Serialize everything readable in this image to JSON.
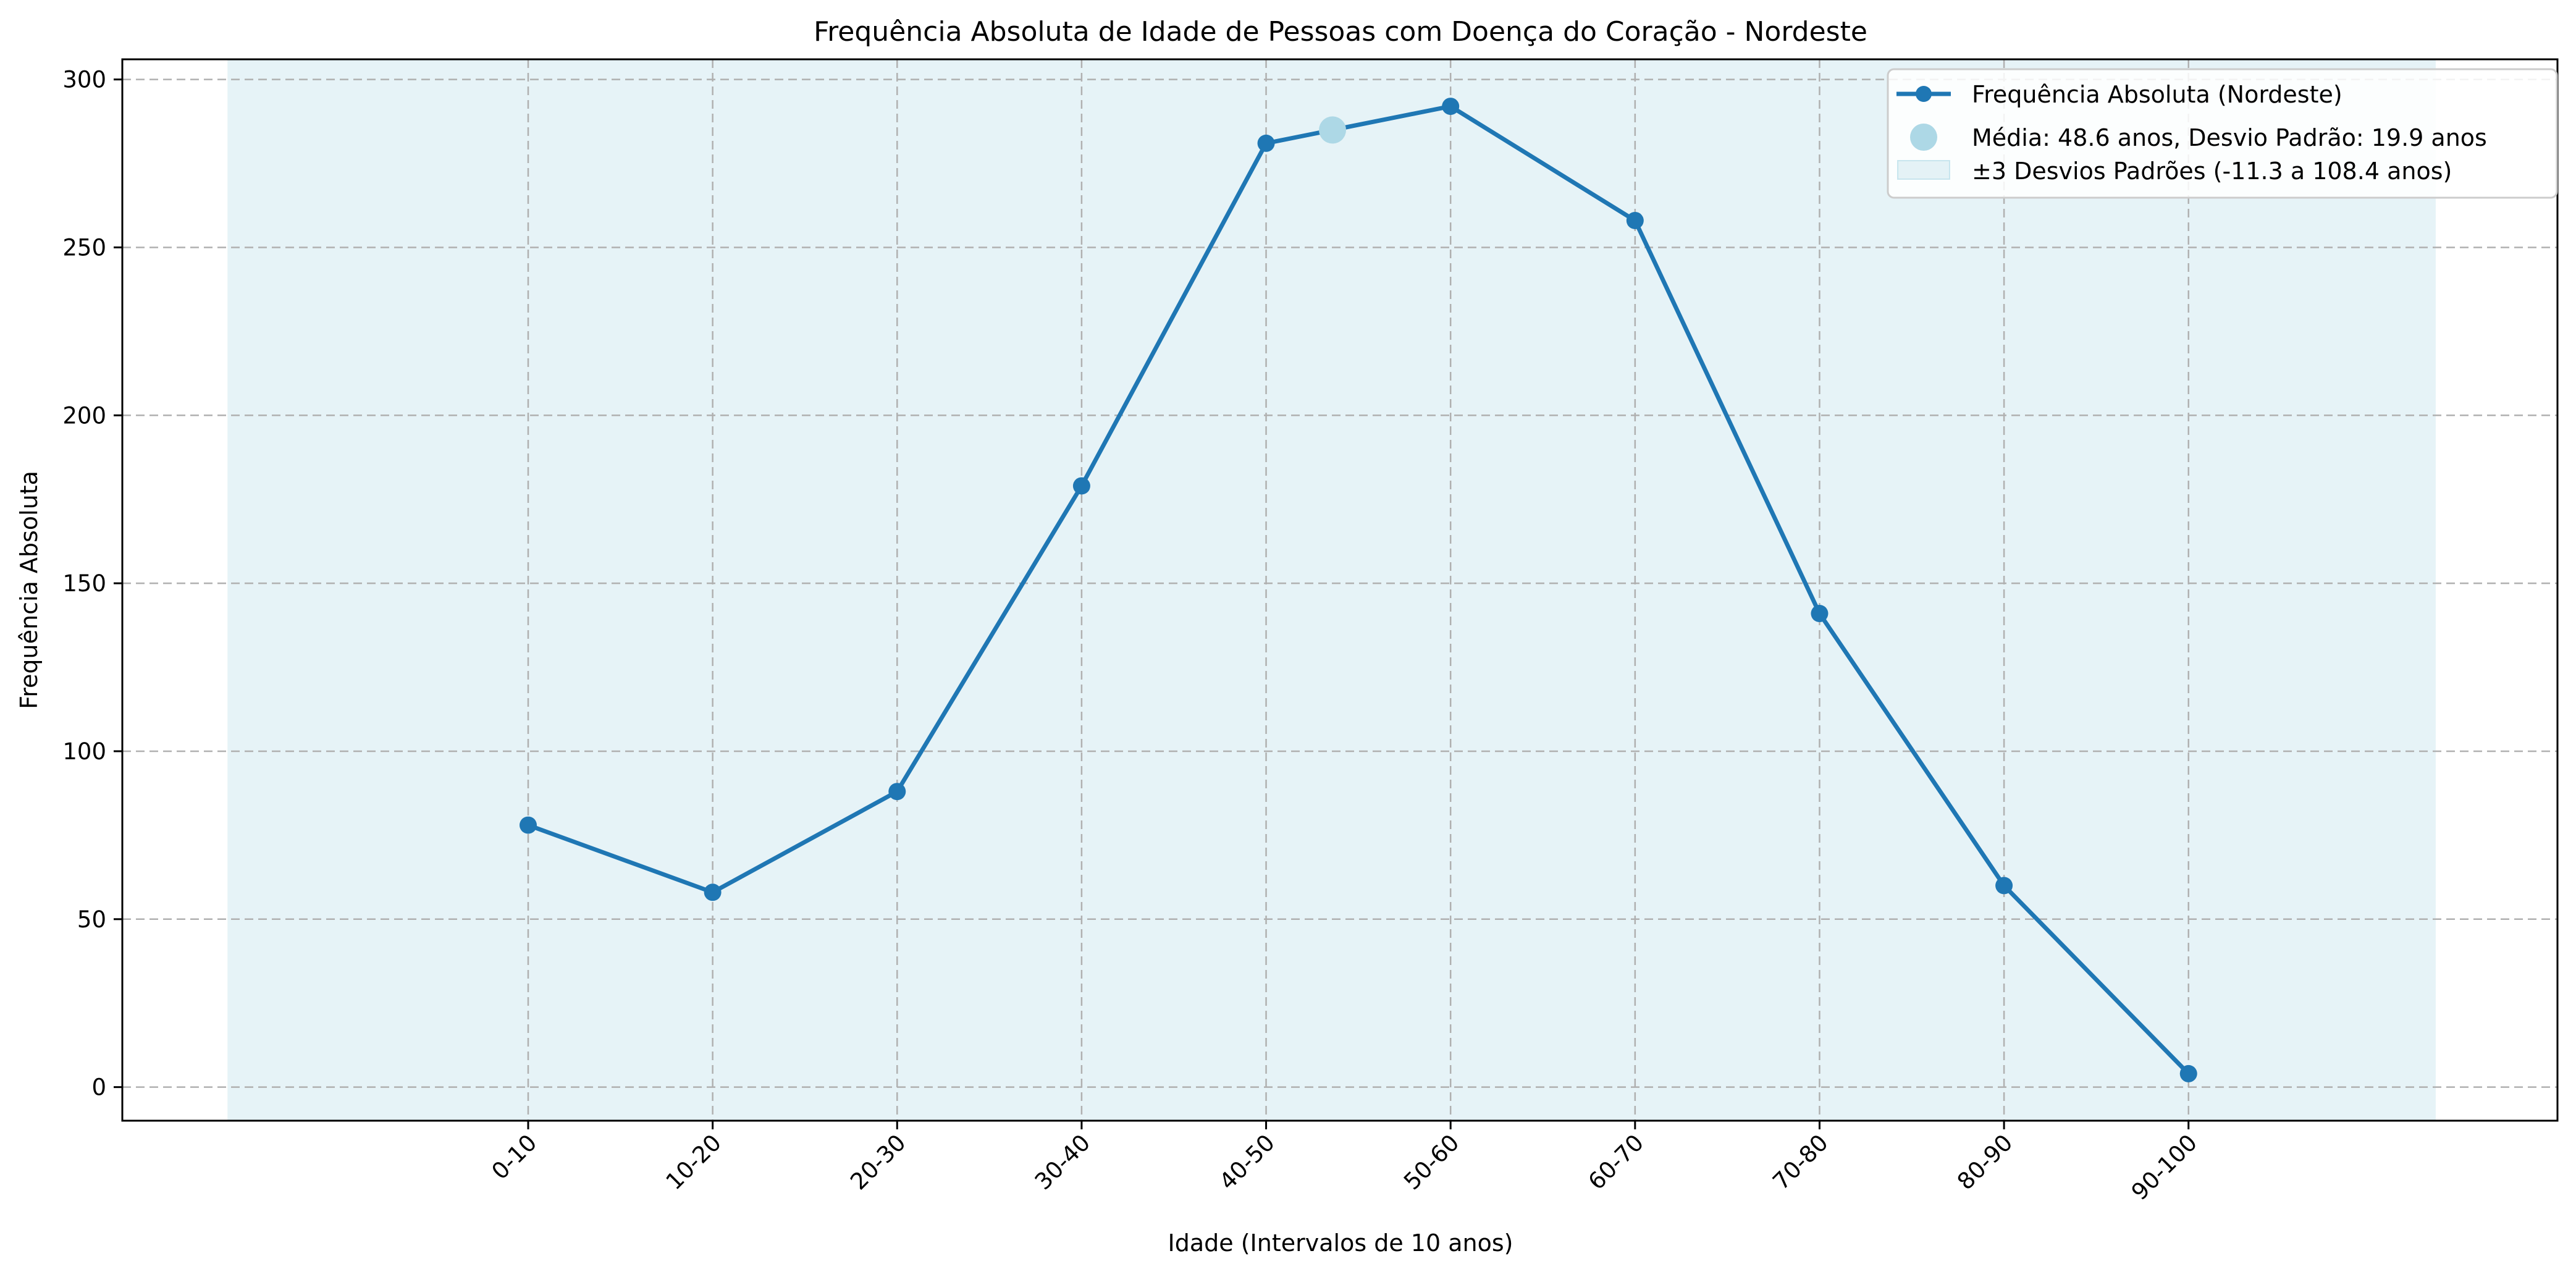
{
  "chart_data": {
    "type": "line",
    "title": "Frequência Absoluta de Idade de Pessoas com Doença do Coração - Nordeste",
    "xlabel": "Idade (Intervalos de 10 anos)",
    "ylabel": "Frequência Absoluta",
    "categories": [
      "0-10",
      "10-20",
      "20-30",
      "30-40",
      "40-50",
      "50-60",
      "60-70",
      "70-80",
      "80-90",
      "90-100"
    ],
    "x_values": [
      5,
      15,
      25,
      35,
      45,
      55,
      65,
      75,
      85,
      95
    ],
    "series": [
      {
        "name": "Frequência Absoluta (Nordeste)",
        "values": [
          78,
          58,
          88,
          179,
          281,
          292,
          258,
          141,
          60,
          4
        ],
        "color": "#1f77b4"
      }
    ],
    "mean": {
      "x": 48.6,
      "label": "Média: 48.6 anos, Desvio Padrão: 19.9 anos",
      "color": "#add8e6"
    },
    "band": {
      "from": -11.3,
      "to": 108.4,
      "label": "±3 Desvios Padrões (-11.3 a 108.4 anos)",
      "color": "#add8e6"
    },
    "yticks": [
      0,
      50,
      100,
      150,
      200,
      250,
      300
    ],
    "xlim": [
      -17,
      115
    ],
    "ylim": [
      -10,
      306
    ],
    "grid": true,
    "legend_position": "top-right"
  }
}
